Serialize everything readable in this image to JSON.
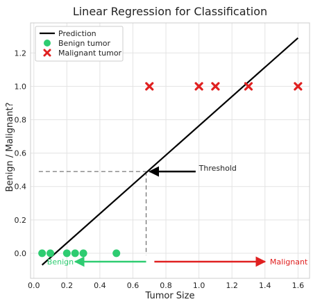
{
  "chart_data": {
    "type": "scatter",
    "title": "Linear Regression for Classification",
    "xlabel": "Tumor Size",
    "ylabel": "Benign / Malignant?",
    "xlim": [
      -0.02,
      1.67
    ],
    "ylim": [
      -0.15,
      1.38
    ],
    "x_ticks": [
      0.0,
      0.2,
      0.4,
      0.6,
      0.8,
      1.0,
      1.2,
      1.4,
      1.6
    ],
    "x_tick_labels": [
      "0.0",
      "0.2",
      "0.4",
      "0.6",
      "0.8",
      "1.0",
      "1.2",
      "1.4",
      "1.6"
    ],
    "y_ticks": [
      0.0,
      0.2,
      0.4,
      0.6,
      0.8,
      1.0,
      1.2
    ],
    "y_tick_labels": [
      "0.0",
      "0.2",
      "0.4",
      "0.6",
      "0.8",
      "1.0",
      "1.2"
    ],
    "grid": true,
    "legend_position": "top-left",
    "series": [
      {
        "name": "Prediction",
        "kind": "line",
        "color": "#000000",
        "x": [
          0.05,
          1.6
        ],
        "y": [
          -0.07,
          1.29
        ]
      },
      {
        "name": "Benign tumor",
        "kind": "scatter",
        "marker": "circle",
        "color": "#2ecc71",
        "x": [
          0.05,
          0.1,
          0.2,
          0.25,
          0.3,
          0.5
        ],
        "y": [
          0,
          0,
          0,
          0,
          0,
          0
        ]
      },
      {
        "name": "Malignant tumor",
        "kind": "scatter",
        "marker": "x",
        "color": "#e02020",
        "x": [
          0.7,
          1.0,
          1.1,
          1.3,
          1.6
        ],
        "y": [
          1,
          1,
          1,
          1,
          1
        ]
      }
    ],
    "threshold": {
      "x": 0.68,
      "y": 0.49,
      "label": "Threshold"
    },
    "annotations": [
      {
        "text": "Benign",
        "color": "#2ecc71",
        "arrow_from": 0.68,
        "arrow_to": 0.25,
        "y": -0.05
      },
      {
        "text": "Malignant",
        "color": "#e02020",
        "arrow_from": 0.73,
        "arrow_to": 1.4,
        "y": -0.05
      }
    ]
  }
}
